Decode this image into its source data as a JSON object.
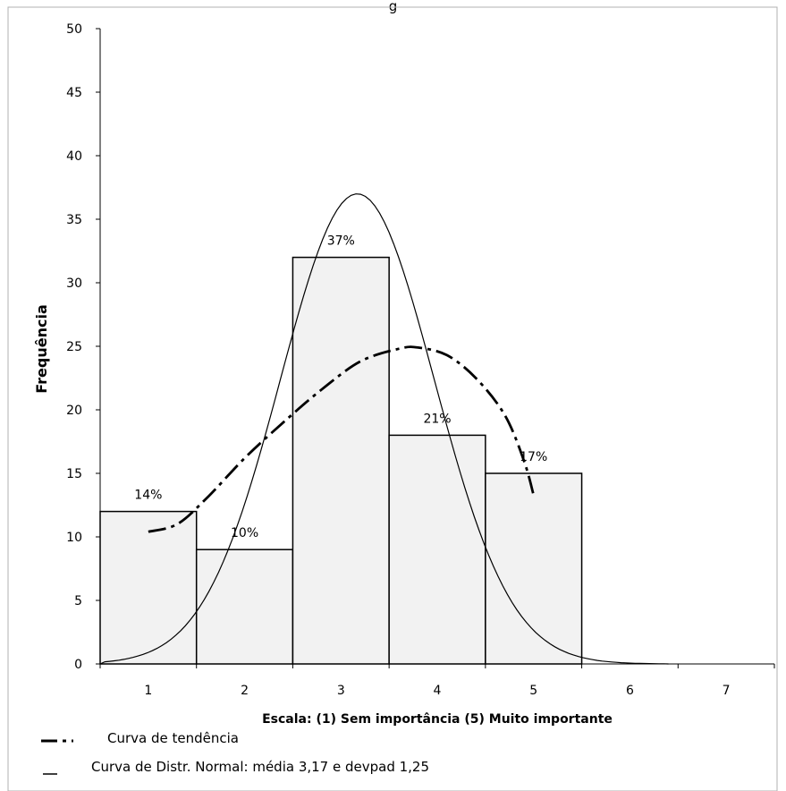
{
  "chart_data": {
    "type": "bar",
    "title_fragment": "g",
    "ylabel": "Frequência",
    "xlabel": "Escala:  (1) Sem importância  (5) Muito importante",
    "ylim": [
      0,
      50
    ],
    "yticks": [
      "0",
      "5",
      "10",
      "15",
      "20",
      "25",
      "30",
      "35",
      "40",
      "45",
      "50"
    ],
    "xlim": [
      0.5,
      7.5
    ],
    "xticks": [
      "1",
      "2",
      "3",
      "4",
      "5",
      "6",
      "7"
    ],
    "categories": [
      "1",
      "2",
      "3",
      "4",
      "5"
    ],
    "values": [
      12,
      9,
      32,
      18,
      15
    ],
    "data_labels": [
      "14%",
      "10%",
      "37%",
      "21%",
      "17%"
    ],
    "bar_color": "#f2f2f2",
    "series": [
      {
        "name": "Curva de tendência",
        "style": "dash-dot",
        "x": [
          1.0,
          1.3,
          1.6,
          2.0,
          2.4,
          2.8,
          3.2,
          3.6,
          3.8,
          4.1,
          4.4,
          4.7,
          4.9,
          5.0
        ],
        "y": [
          10.4,
          11.0,
          13.0,
          16.2,
          19.0,
          21.6,
          23.8,
          24.8,
          24.9,
          24.3,
          22.5,
          19.6,
          16.0,
          13.3
        ]
      },
      {
        "name": "Curva de Distr. Normal: média 3,17 e devpad 1,25",
        "style": "solid",
        "mean": 3.17,
        "peak": 37,
        "x_start": 0.5,
        "x_end": 6.4
      }
    ],
    "legend": {
      "placement": "bottom-left",
      "entries": [
        "Curva de tendência",
        "Curva de Distr. Normal: média 3,17 e devpad 1,25"
      ]
    }
  }
}
